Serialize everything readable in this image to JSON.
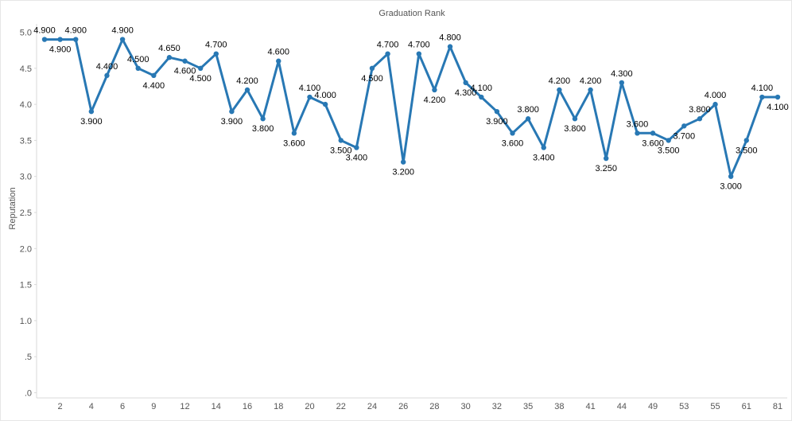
{
  "chart_data": {
    "type": "line",
    "title": "Graduation Rank",
    "xlabel": "",
    "ylabel": "Reputation",
    "ylim": [
      0,
      5
    ],
    "y_ticks": [
      "5.0",
      "4.5",
      "4.0",
      "3.5",
      "3.0",
      "2.5",
      "2.0",
      "1.5",
      "1.0",
      ".5",
      ".0"
    ],
    "x_tick_labels": [
      "2",
      "4",
      "6",
      "9",
      "12",
      "14",
      "16",
      "18",
      "20",
      "22",
      "24",
      "26",
      "28",
      "30",
      "32",
      "35",
      "38",
      "41",
      "44",
      "49",
      "53",
      "55",
      "61",
      "81"
    ],
    "grid": false,
    "color": "#2878b4",
    "series": [
      {
        "values": [
          4.9,
          4.9,
          4.9,
          3.9,
          4.4,
          4.9,
          4.5,
          4.4,
          4.65,
          4.6,
          4.5,
          4.7,
          3.9,
          4.2,
          3.8,
          4.6,
          3.6,
          4.1,
          4.0,
          3.5,
          3.4,
          4.5,
          4.7,
          3.2,
          4.7,
          4.2,
          4.8,
          4.3,
          4.1,
          3.9,
          3.6,
          3.8,
          3.4,
          4.2,
          3.8,
          4.2,
          3.25,
          4.3,
          3.6,
          3.6,
          3.5,
          3.7,
          3.8,
          4.0,
          3.0,
          3.5,
          4.1,
          4.1
        ],
        "labels": [
          "4.900",
          "4.900",
          "4.900",
          "3.900",
          "4.400",
          "4.900",
          "4.500",
          "4.400",
          "4.650",
          "4.600",
          "4.500",
          "4.700",
          "3.900",
          "4.200",
          "3.800",
          "4.600",
          "3.600",
          "4.100",
          "4.000",
          "3.500",
          "3.400",
          "4.500",
          "4.700",
          "3.200",
          "4.700",
          "4.200",
          "4.800",
          "4.300",
          "4.100",
          "3.900",
          "3.600",
          "3.800",
          "3.400",
          "4.200",
          "3.800",
          "4.200",
          "3.250",
          "4.300",
          "3.600",
          "3.600",
          "3.500",
          "3.700",
          "3.800",
          "4.000",
          "3.000",
          "3.500",
          "4.100",
          "4.100"
        ]
      }
    ]
  }
}
